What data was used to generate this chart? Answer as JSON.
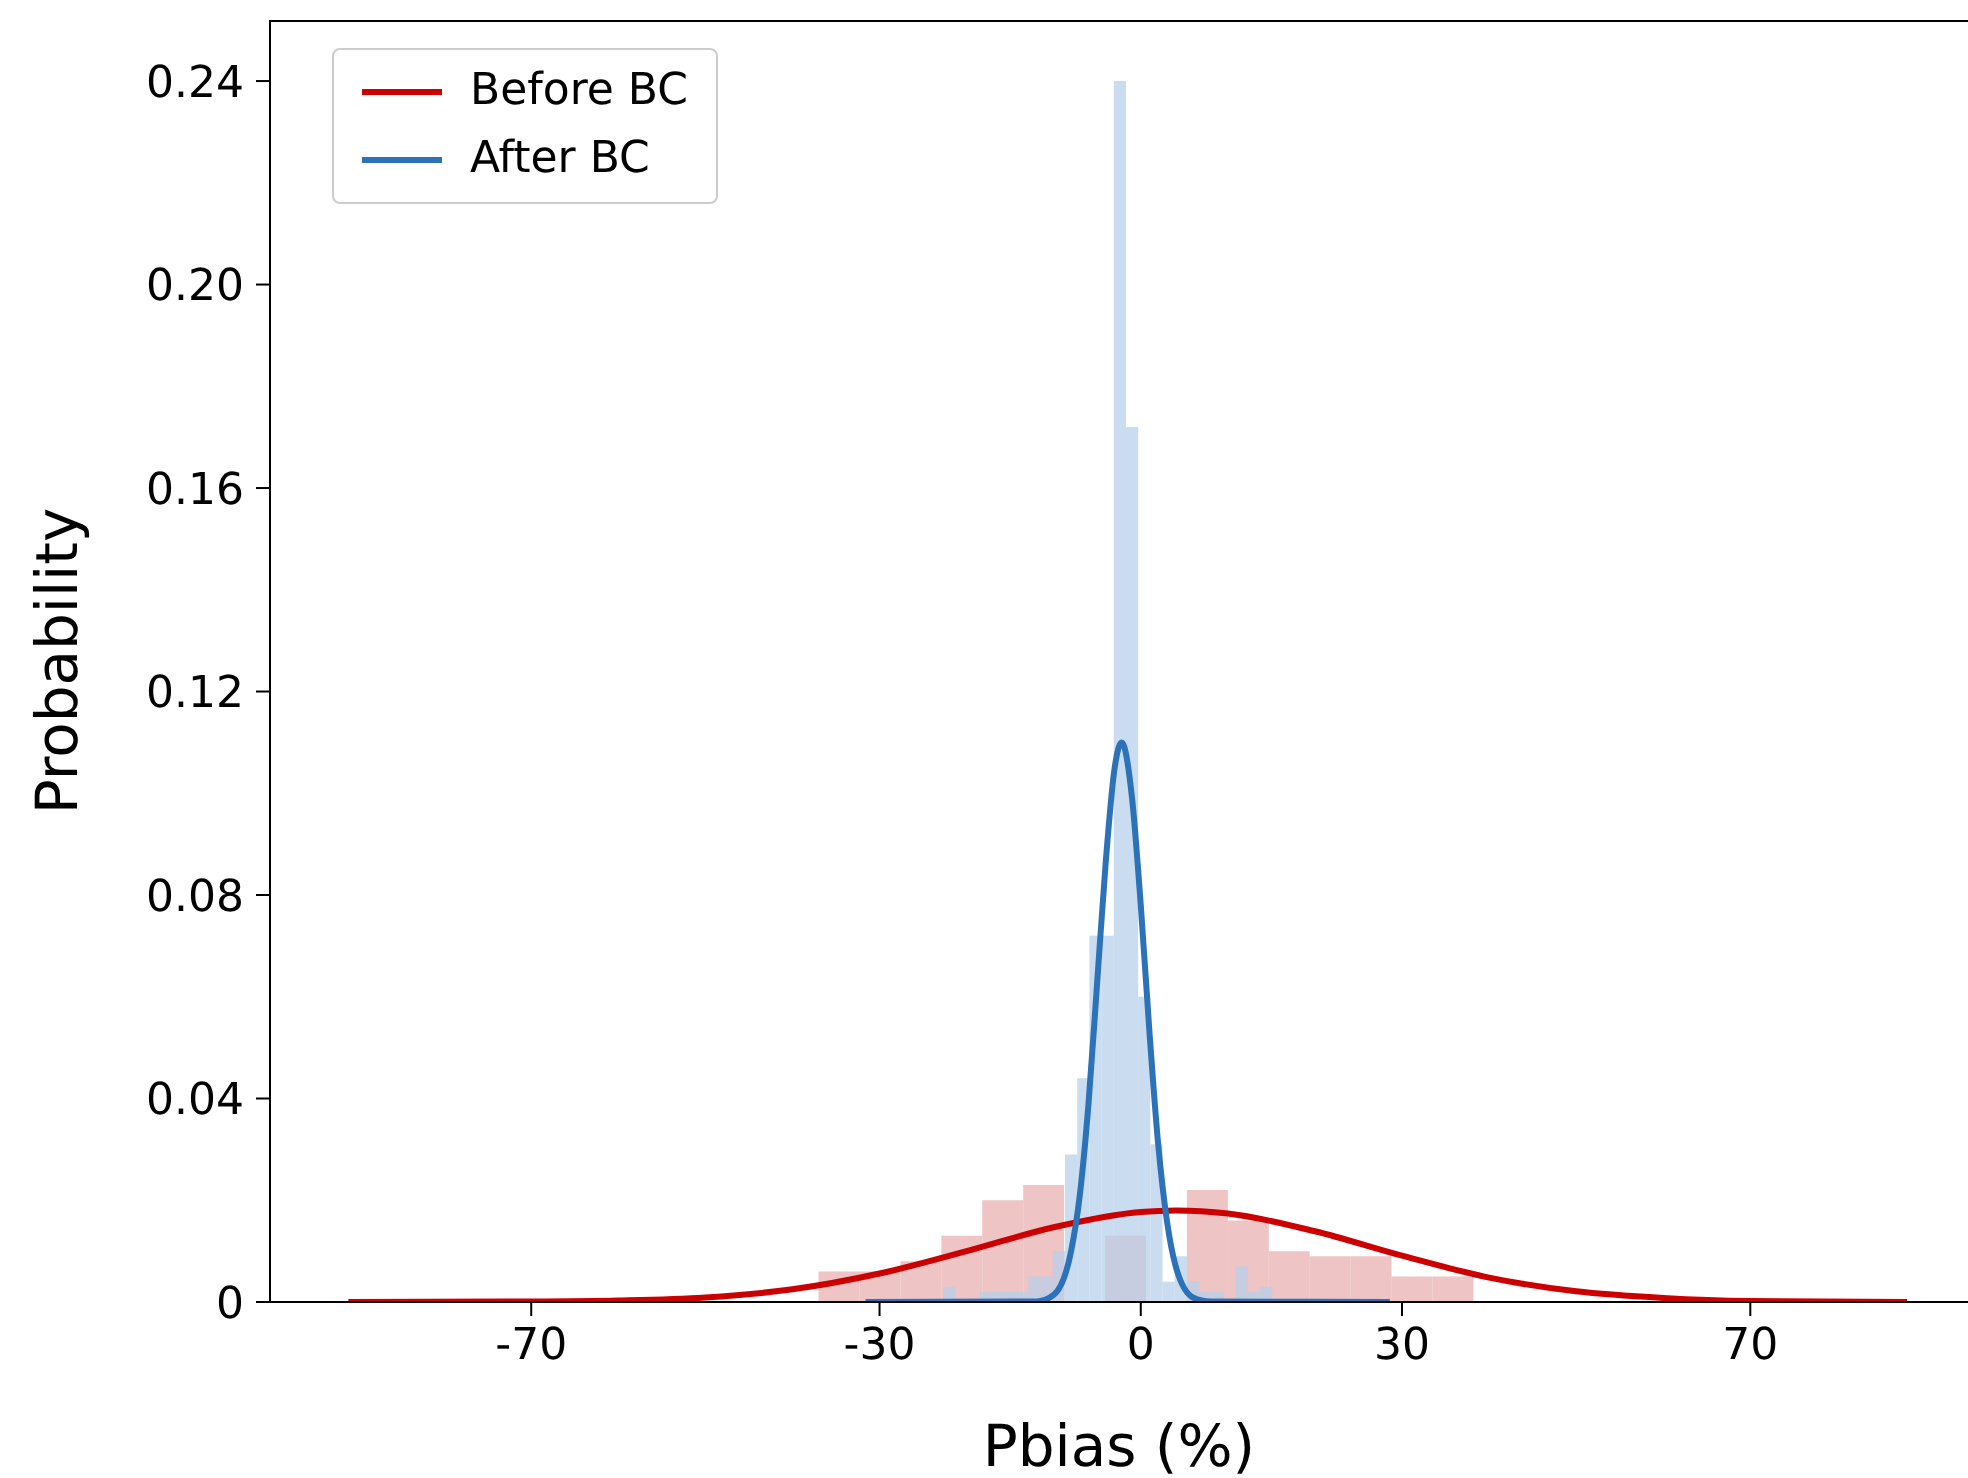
{
  "chart_data": {
    "type": "histogram",
    "xlabel": "Pbias (%)",
    "ylabel": "Probability",
    "xlim": [
      -100,
      95
    ],
    "ylim": [
      0,
      0.252
    ],
    "xticks": [
      -70,
      -30,
      0,
      30,
      70
    ],
    "yticks": [
      0,
      0.04,
      0.08,
      0.12,
      0.16,
      {
        "value": 0.2,
        "label": "0.20"
      },
      0.24
    ],
    "legend": "top left",
    "grid": false,
    "series": [
      {
        "type": "histogram",
        "color": "#e8b0b0",
        "bins": [
          -37,
          -32.3,
          -27.6,
          -22.9,
          -18.2,
          -13.5,
          -8.8,
          -4.1,
          0.6,
          5.3,
          10,
          14.7,
          19.4,
          24.1,
          28.8,
          33.5,
          38.2
        ],
        "values": [
          0.006,
          0.006,
          0.008,
          0.013,
          0.02,
          0.023,
          null,
          0.013,
          null,
          0.022,
          0.016,
          0.01,
          0.009,
          0.009,
          0.005,
          0.005
        ]
      },
      {
        "type": "histogram",
        "color": "#b8d0ea",
        "bins": [
          -22.7,
          -21.3,
          -19.9,
          -18.5,
          -17.1,
          -15.7,
          -14.3,
          -12.9,
          -11.5,
          -10.1,
          -8.7,
          -7.3,
          -5.9,
          -4.5,
          -3.1,
          -1.7,
          -0.3,
          1.1,
          2.5,
          3.9,
          5.3,
          6.7,
          8.1,
          9.5,
          10.9,
          12.3,
          13.7,
          15.1
        ],
        "values": [
          0.003,
          0,
          0,
          0.002,
          0.002,
          0.002,
          0.002,
          0.005,
          0.005,
          0.01,
          0.029,
          0.044,
          0.072,
          0.072,
          0.24,
          0.172,
          0.06,
          0.031,
          0.004,
          0.009,
          0.004,
          0.002,
          0.002,
          null,
          0.007,
          0.002,
          0.003
        ]
      },
      {
        "type": "line",
        "name": "Before BC",
        "color": "#cc0000",
        "x": [
          -91,
          -70,
          -60,
          -50,
          -40,
          -30,
          -20,
          -10,
          0,
          4,
          10,
          20,
          30,
          40,
          50,
          60,
          70,
          88
        ],
        "values": [
          0,
          0.0001,
          0.0003,
          0.0009,
          0.0025,
          0.0056,
          0.01,
          0.0147,
          0.0177,
          0.018,
          0.0174,
          0.0139,
          0.0091,
          0.0048,
          0.0021,
          0.0008,
          0.0002,
          0
        ]
      },
      {
        "type": "line",
        "name": "After BC",
        "color": "#2b72b8",
        "x": [
          -31.6,
          -12,
          -10,
          -8,
          -7,
          -6,
          -5,
          -4,
          -3,
          -2.2,
          -1,
          0,
          1,
          2,
          3,
          4,
          6,
          8,
          28.6
        ],
        "values": [
          0,
          0.0001,
          0.0014,
          0.01,
          0.021,
          0.039,
          0.063,
          0.087,
          0.105,
          0.11,
          0.099,
          0.078,
          0.053,
          0.031,
          0.016,
          0.0071,
          0.0009,
          0.0001,
          0
        ]
      }
    ]
  }
}
